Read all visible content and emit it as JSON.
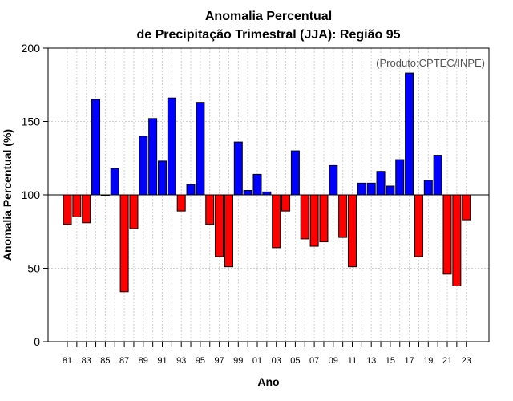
{
  "chart_data": {
    "type": "bar",
    "title_line1": "Anomalia Percentual",
    "title_line2": "de Precipitação Trimestral (JJA): Região 95",
    "xlabel": "Ano",
    "ylabel": "Anomalia Percentual (%)",
    "source": "(Produto:CPTEC/INPE)",
    "ylim": [
      0,
      200
    ],
    "yticks": [
      0,
      50,
      100,
      150,
      200
    ],
    "baseline": 100,
    "grid": true,
    "colors": {
      "above": "#0000ff",
      "below": "#ff0000"
    },
    "categories": [
      "81",
      "82",
      "83",
      "84",
      "85",
      "86",
      "87",
      "88",
      "89",
      "90",
      "91",
      "92",
      "93",
      "94",
      "95",
      "96",
      "97",
      "98",
      "99",
      "00",
      "01",
      "02",
      "03",
      "04",
      "05",
      "06",
      "07",
      "08",
      "09",
      "10",
      "11",
      "12",
      "13",
      "14",
      "15",
      "16",
      "17",
      "18",
      "19",
      "20",
      "21",
      "22",
      "23"
    ],
    "tick_labels": [
      "81",
      "83",
      "85",
      "87",
      "89",
      "91",
      "93",
      "95",
      "97",
      "99",
      "01",
      "03",
      "05",
      "07",
      "09",
      "11",
      "13",
      "15",
      "17",
      "19",
      "21",
      "23"
    ],
    "values": [
      80,
      85,
      81,
      165,
      100,
      118,
      34,
      77,
      140,
      152,
      123,
      166,
      89,
      107,
      163,
      80,
      58,
      51,
      136,
      103,
      114,
      102,
      64,
      89,
      130,
      70,
      65,
      68,
      120,
      71,
      51,
      108,
      108,
      116,
      106,
      124,
      183,
      58,
      110,
      127,
      46,
      38,
      83
    ]
  }
}
